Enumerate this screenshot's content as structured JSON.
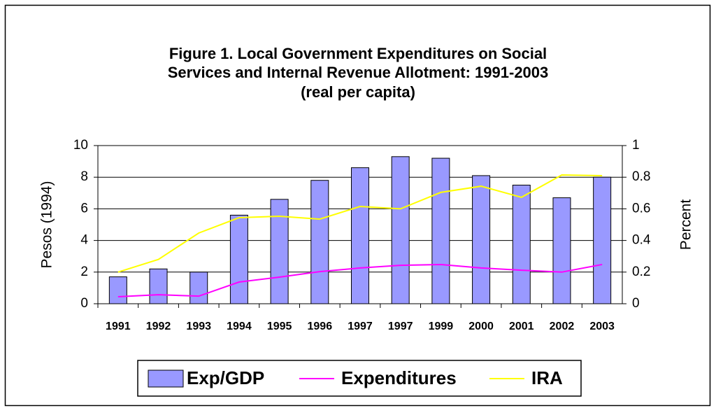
{
  "chart_data": {
    "type": "bar",
    "title": [
      "Figure 1. Local Government Expenditures on Social",
      "Services and Internal Revenue Allotment: 1991-2003",
      "(real per capita)"
    ],
    "ylabel": "Pesos (1994)",
    "y2label": "Percent",
    "categories": [
      "1991",
      "1992",
      "1993",
      "1994",
      "1995",
      "1996",
      "1997",
      "1997",
      "1999",
      "2000",
      "2001",
      "2002",
      "2003"
    ],
    "series": [
      {
        "name": "Exp/GDP",
        "type": "bar",
        "axis": "y2",
        "color": "#9999ff",
        "values": [
          0.17,
          0.22,
          0.2,
          0.56,
          0.66,
          0.78,
          0.86,
          0.93,
          0.92,
          0.81,
          0.75,
          0.67,
          0.8
        ]
      },
      {
        "name": "Expenditures",
        "type": "line",
        "color": "#ff00ff",
        "values": [
          0.44,
          0.57,
          0.48,
          1.37,
          1.68,
          2.03,
          2.26,
          2.43,
          2.48,
          2.26,
          2.12,
          2.0,
          2.48
        ]
      },
      {
        "name": "IRA",
        "type": "line",
        "color": "#ffff00",
        "values": [
          2.0,
          2.8,
          4.47,
          5.44,
          5.53,
          5.35,
          6.15,
          6.0,
          7.04,
          7.43,
          6.73,
          8.14,
          8.1
        ]
      }
    ],
    "ylim": [
      0,
      10
    ],
    "yticks": [
      0,
      2,
      4,
      6,
      8,
      10
    ],
    "y2lim": [
      0,
      1
    ],
    "y2ticks": [
      0,
      0.2,
      0.4,
      0.6,
      0.8,
      1
    ],
    "grid": true,
    "legend": "bottom"
  }
}
